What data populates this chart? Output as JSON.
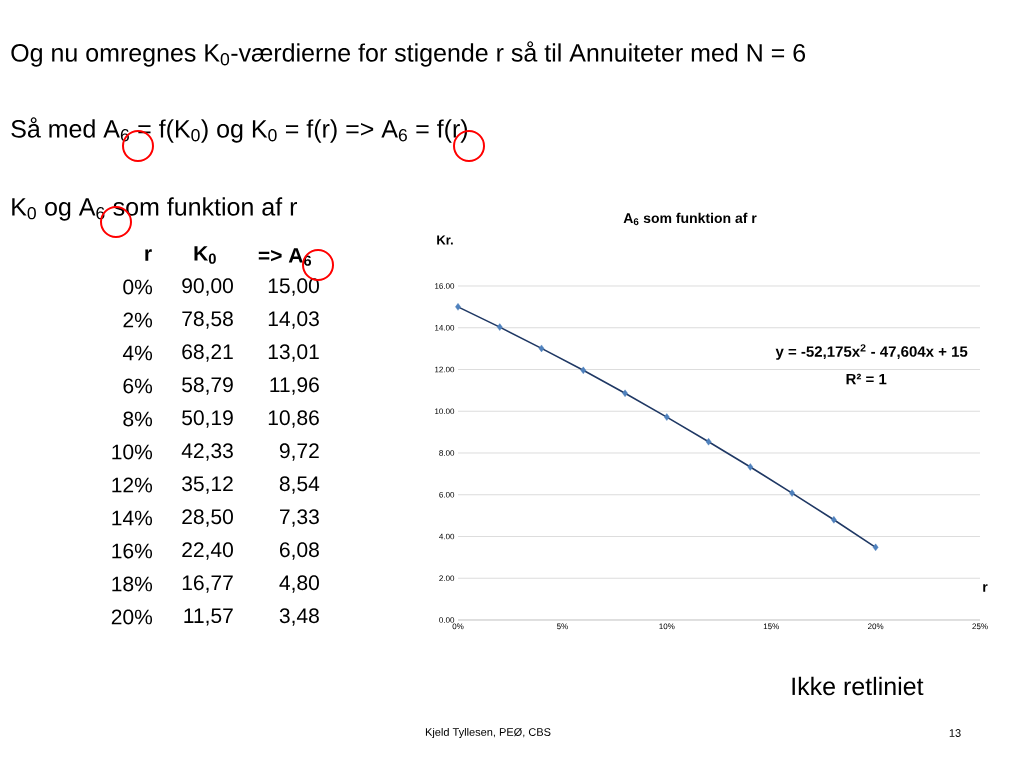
{
  "chart_data": {
    "type": "scatter",
    "title": "A$_{6}$ som funktion af r",
    "xlabel": "r",
    "ylabel": "Kr.",
    "x": [
      0,
      2,
      4,
      6,
      8,
      10,
      12,
      14,
      16,
      18,
      20
    ],
    "series": [
      {
        "type": "scatter",
        "color": "#4f81bd",
        "marker": "diamond",
        "values": [
          15.0,
          14.03,
          13.01,
          11.96,
          10.86,
          9.72,
          8.54,
          7.33,
          6.08,
          4.8,
          3.48
        ]
      },
      {
        "type": "line",
        "color": "#1f3864",
        "marker": "none",
        "values": [
          15.0,
          14.03,
          13.01,
          11.96,
          10.86,
          9.72,
          8.54,
          7.33,
          6.08,
          4.8,
          3.48
        ]
      }
    ],
    "xlim": [
      0,
      25
    ],
    "xticks": [
      {
        "value": 0,
        "label": "0%"
      },
      {
        "value": 5,
        "label": "5%"
      },
      {
        "value": 10,
        "label": "10%"
      },
      {
        "value": 15,
        "label": "15%"
      },
      {
        "value": 20,
        "label": "20%"
      },
      {
        "value": 25,
        "label": "25%"
      }
    ],
    "ylim": [
      0,
      16
    ],
    "yticks": [
      {
        "value": 0,
        "label": "0.00"
      },
      {
        "value": 2,
        "label": "2.00"
      },
      {
        "value": 4,
        "label": "4.00"
      },
      {
        "value": 6,
        "label": "6.00"
      },
      {
        "value": 8,
        "label": "8.00"
      },
      {
        "value": 10,
        "label": "10.00"
      },
      {
        "value": 12,
        "label": "12.00"
      },
      {
        "value": 14,
        "label": "14.00"
      },
      {
        "value": 16,
        "label": "16.00"
      }
    ],
    "grid": "y",
    "annotations": [
      "y = -52,175x$^{2}$ - 47,604x + 15",
      "R² = 1",
      "Og nu omregnes K$_{0}$-værdierne for stigende r så til Annuiteter med N = 6",
      "Så med A$_{6}$ = f(K$_{0}$) og K$_{0}$ = f(r) => A$_{6}$ = f(r)",
      "K$_{0}$ og A$_{6}$ som funktion af r",
      "r",
      "K$_{0}$",
      "=> A$_{6}$",
      "0%",
      "2%",
      "4%",
      "6%",
      "8%",
      "10%",
      "12%",
      "14%",
      "16%",
      "18%",
      "20%",
      "90,00",
      "78,58",
      "68,21",
      "58,79",
      "50,19",
      "42,33",
      "35,12",
      "28,50",
      "22,40",
      "16,77",
      "11,57",
      "Ikke retliniet",
      "Kjeld Tyllesen, PEØ, CBS",
      "13",
      "15,00",
      "14,03",
      "13,01",
      "11,96",
      "10,86",
      "9,72",
      "8,54",
      "7,33",
      "6,08",
      "4,80",
      "3,48"
    ]
  }
}
